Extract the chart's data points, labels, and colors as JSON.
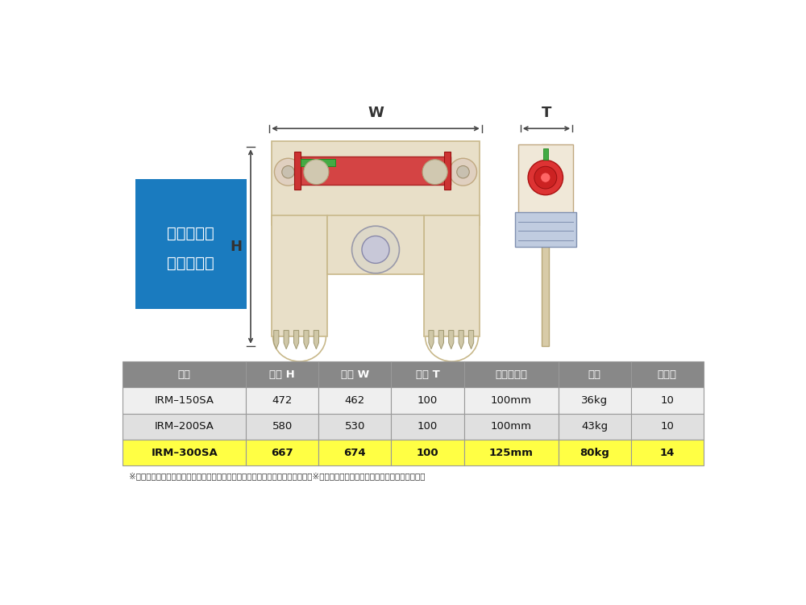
{
  "bg_color": "#ffffff",
  "blue_box_color": "#1a7bbf",
  "blue_box_text_line1": "きったくん",
  "blue_box_text_line2": "スペック表",
  "blue_box_text_color": "#ffffff",
  "table_header_bg": "#888888",
  "table_header_text_color": "#ffffff",
  "table_row1_bg": "#efefef",
  "table_row2_bg": "#e0e0e0",
  "table_row3_bg": "#ffff44",
  "table_border_color": "#999999",
  "table_headers": [
    "形式",
    "寸法 H",
    "寸法 W",
    "寸法 T",
    "ストローク",
    "重量",
    "ピン数"
  ],
  "table_rows": [
    [
      "IRM–150SA",
      "472",
      "462",
      "100",
      "100mm",
      "36kg",
      "10"
    ],
    [
      "IRM–200SA",
      "580",
      "530",
      "100",
      "100mm",
      "43kg",
      "10"
    ],
    [
      "IRM–300SA",
      "667",
      "674",
      "100",
      "125mm",
      "80kg",
      "14"
    ]
  ],
  "footnote": "※電動油圧ポンプは、油圧メーター付きと油圧メーター無しの選択が可能です。※製品の仕様は予告なく変更する事があります。",
  "dim_label_W": "W",
  "dim_label_H": "H",
  "dim_label_T": "T"
}
